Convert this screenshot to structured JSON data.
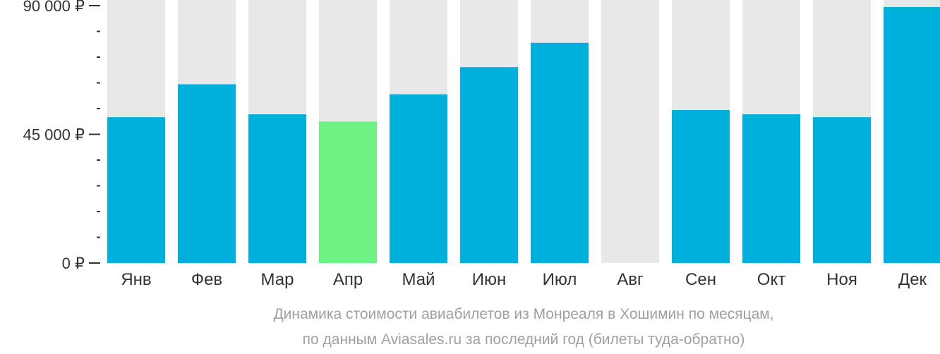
{
  "chart_data": {
    "type": "bar",
    "title": "",
    "xlabel": "",
    "ylabel": "",
    "ylim": [
      0,
      90000
    ],
    "grid": false,
    "legend": "none",
    "categories": [
      "Янв",
      "Фев",
      "Мар",
      "Апр",
      "Май",
      "Июн",
      "Июл",
      "Авг",
      "Сен",
      "Окт",
      "Ноя",
      "Дек"
    ],
    "values": [
      51000,
      62500,
      52000,
      49500,
      59000,
      68500,
      77000,
      null,
      53500,
      52000,
      51000,
      89500
    ],
    "highlight_index": 3,
    "y_ticks": [
      {
        "value": 0,
        "label": "0 ₽"
      },
      {
        "value": 45000,
        "label": "45 000 ₽"
      },
      {
        "value": 90000,
        "label": "90 000 ₽"
      }
    ],
    "caption": [
      "Динамика стоимости авиабилетов из Монреаля в Хошимин по месяцам,",
      "по данным Aviasales.ru за последний год (билеты туда-обратно)"
    ],
    "colors": {
      "bar": "#00b0dc",
      "highlight": "#6ef283",
      "background_column": "#e8e8e8",
      "axis": "#333333",
      "caption": "#a0a0a0"
    }
  }
}
